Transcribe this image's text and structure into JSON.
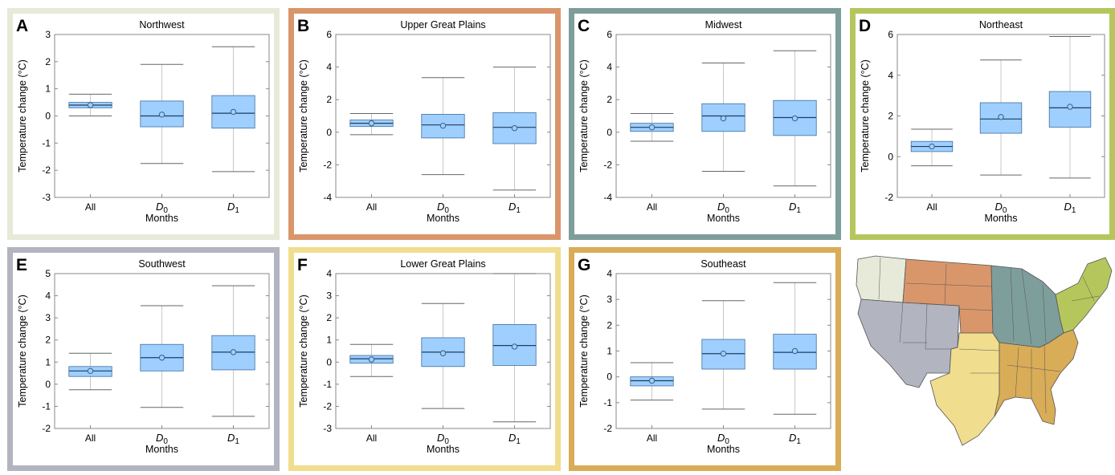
{
  "chart_data": [
    {
      "type": "box",
      "letter": "A",
      "title": "Northwest",
      "frame_color": "#e7ead8",
      "ylabel": "Temperature change (°C)",
      "xlabel": "Months",
      "ylim": [
        -3,
        3
      ],
      "yticks": [
        -3,
        -2,
        -1,
        0,
        1,
        2,
        3
      ],
      "categories": [
        {
          "main": "All",
          "sub": ""
        },
        {
          "main": "D",
          "sub": "0"
        },
        {
          "main": "D",
          "sub": "1"
        }
      ],
      "boxes": [
        {
          "whisker_low": 0.0,
          "q1": 0.3,
          "median": 0.4,
          "q3": 0.5,
          "whisker_high": 0.8,
          "mean": 0.4
        },
        {
          "whisker_low": -1.75,
          "q1": -0.4,
          "median": 0.0,
          "q3": 0.55,
          "whisker_high": 1.9,
          "mean": 0.05
        },
        {
          "whisker_low": -2.05,
          "q1": -0.45,
          "median": 0.1,
          "q3": 0.75,
          "whisker_high": 2.55,
          "mean": 0.15
        }
      ]
    },
    {
      "type": "box",
      "letter": "B",
      "title": "Upper Great Plains",
      "frame_color": "#d9966b",
      "ylabel": "Temperature change (°C)",
      "xlabel": "Months",
      "ylim": [
        -4,
        6
      ],
      "yticks": [
        -4,
        -2,
        0,
        2,
        4,
        6
      ],
      "categories": [
        {
          "main": "All",
          "sub": ""
        },
        {
          "main": "D",
          "sub": "0"
        },
        {
          "main": "D",
          "sub": "1"
        }
      ],
      "boxes": [
        {
          "whisker_low": -0.15,
          "q1": 0.35,
          "median": 0.55,
          "q3": 0.75,
          "whisker_high": 1.15,
          "mean": 0.55
        },
        {
          "whisker_low": -2.6,
          "q1": -0.35,
          "median": 0.45,
          "q3": 1.1,
          "whisker_high": 3.35,
          "mean": 0.4
        },
        {
          "whisker_low": -3.55,
          "q1": -0.7,
          "median": 0.3,
          "q3": 1.2,
          "whisker_high": 4.0,
          "mean": 0.25
        }
      ]
    },
    {
      "type": "box",
      "letter": "C",
      "title": "Midwest",
      "frame_color": "#7e9e9b",
      "ylabel": "Temperature change (°C)",
      "xlabel": "Months",
      "ylim": [
        -4,
        6
      ],
      "yticks": [
        -4,
        -2,
        0,
        2,
        4,
        6
      ],
      "categories": [
        {
          "main": "All",
          "sub": ""
        },
        {
          "main": "D",
          "sub": "0"
        },
        {
          "main": "D",
          "sub": "1"
        }
      ],
      "boxes": [
        {
          "whisker_low": -0.55,
          "q1": 0.05,
          "median": 0.3,
          "q3": 0.55,
          "whisker_high": 1.15,
          "mean": 0.3
        },
        {
          "whisker_low": -2.4,
          "q1": 0.05,
          "median": 1.0,
          "q3": 1.75,
          "whisker_high": 4.25,
          "mean": 0.85
        },
        {
          "whisker_low": -3.3,
          "q1": -0.2,
          "median": 0.9,
          "q3": 1.95,
          "whisker_high": 5.0,
          "mean": 0.85
        }
      ]
    },
    {
      "type": "box",
      "letter": "D",
      "title": "Northeast",
      "frame_color": "#b5c75c",
      "ylabel": "Temperature change (°C)",
      "xlabel": "Months",
      "ylim": [
        -2,
        6
      ],
      "yticks": [
        -2,
        0,
        2,
        4,
        6
      ],
      "categories": [
        {
          "main": "All",
          "sub": ""
        },
        {
          "main": "D",
          "sub": "0"
        },
        {
          "main": "D",
          "sub": "1"
        }
      ],
      "boxes": [
        {
          "whisker_low": -0.45,
          "q1": 0.25,
          "median": 0.5,
          "q3": 0.75,
          "whisker_high": 1.35,
          "mean": 0.5
        },
        {
          "whisker_low": -0.9,
          "q1": 1.15,
          "median": 1.85,
          "q3": 2.65,
          "whisker_high": 4.75,
          "mean": 1.95
        },
        {
          "whisker_low": -1.05,
          "q1": 1.45,
          "median": 2.4,
          "q3": 3.2,
          "whisker_high": 5.9,
          "mean": 2.45
        }
      ]
    },
    {
      "type": "box",
      "letter": "E",
      "title": "Southwest",
      "frame_color": "#b2b4c0",
      "ylabel": "Temperature change (°C)",
      "xlabel": "Months",
      "ylim": [
        -2,
        5
      ],
      "yticks": [
        -2,
        -1,
        0,
        1,
        2,
        3,
        4,
        5
      ],
      "categories": [
        {
          "main": "All",
          "sub": ""
        },
        {
          "main": "D",
          "sub": "0"
        },
        {
          "main": "D",
          "sub": "1"
        }
      ],
      "boxes": [
        {
          "whisker_low": -0.25,
          "q1": 0.35,
          "median": 0.6,
          "q3": 0.8,
          "whisker_high": 1.4,
          "mean": 0.6
        },
        {
          "whisker_low": -1.05,
          "q1": 0.6,
          "median": 1.2,
          "q3": 1.8,
          "whisker_high": 3.55,
          "mean": 1.2
        },
        {
          "whisker_low": -1.45,
          "q1": 0.65,
          "median": 1.45,
          "q3": 2.2,
          "whisker_high": 4.45,
          "mean": 1.45
        }
      ]
    },
    {
      "type": "box",
      "letter": "F",
      "title": "Lower Great Plains",
      "frame_color": "#f0dd8e",
      "ylabel": "Temperature change (°C)",
      "xlabel": "Months",
      "ylim": [
        -3,
        4
      ],
      "yticks": [
        -3,
        -2,
        -1,
        0,
        1,
        2,
        3,
        4
      ],
      "categories": [
        {
          "main": "All",
          "sub": ""
        },
        {
          "main": "D",
          "sub": "0"
        },
        {
          "main": "D",
          "sub": "1"
        }
      ],
      "boxes": [
        {
          "whisker_low": -0.65,
          "q1": -0.05,
          "median": 0.15,
          "q3": 0.3,
          "whisker_high": 0.8,
          "mean": 0.12
        },
        {
          "whisker_low": -2.1,
          "q1": -0.2,
          "median": 0.45,
          "q3": 1.1,
          "whisker_high": 2.65,
          "mean": 0.4
        },
        {
          "whisker_low": -2.7,
          "q1": -0.15,
          "median": 0.75,
          "q3": 1.7,
          "whisker_high": 4.0,
          "mean": 0.7
        }
      ]
    },
    {
      "type": "box",
      "letter": "G",
      "title": "Southeast",
      "frame_color": "#d9ac58",
      "ylabel": "Temperature change (°C)",
      "xlabel": "Months",
      "ylim": [
        -2,
        4
      ],
      "yticks": [
        -2,
        -1,
        0,
        1,
        2,
        3,
        4
      ],
      "categories": [
        {
          "main": "All",
          "sub": ""
        },
        {
          "main": "D",
          "sub": "0"
        },
        {
          "main": "D",
          "sub": "1"
        }
      ],
      "boxes": [
        {
          "whisker_low": -0.9,
          "q1": -0.35,
          "median": -0.15,
          "q3": 0.0,
          "whisker_high": 0.55,
          "mean": -0.15
        },
        {
          "whisker_low": -1.25,
          "q1": 0.3,
          "median": 0.9,
          "q3": 1.45,
          "whisker_high": 2.95,
          "mean": 0.9
        },
        {
          "whisker_low": -1.45,
          "q1": 0.3,
          "median": 0.95,
          "q3": 1.65,
          "whisker_high": 3.65,
          "mean": 1.0
        }
      ]
    }
  ],
  "style": {
    "box_fill": "#9fcfff",
    "box_stroke": "#3c6e9e",
    "whisker_color": "#c8c8c8",
    "axis_color": "#888888"
  },
  "map": {
    "regions": [
      {
        "name": "Northwest",
        "color": "#e7ead8"
      },
      {
        "name": "Upper Great Plains",
        "color": "#d9966b"
      },
      {
        "name": "Midwest",
        "color": "#7e9e9b"
      },
      {
        "name": "Northeast",
        "color": "#b5c75c"
      },
      {
        "name": "Southwest",
        "color": "#b2b4c0"
      },
      {
        "name": "Lower Great Plains",
        "color": "#f0dd8e"
      },
      {
        "name": "Southeast",
        "color": "#d9ac58"
      }
    ]
  }
}
